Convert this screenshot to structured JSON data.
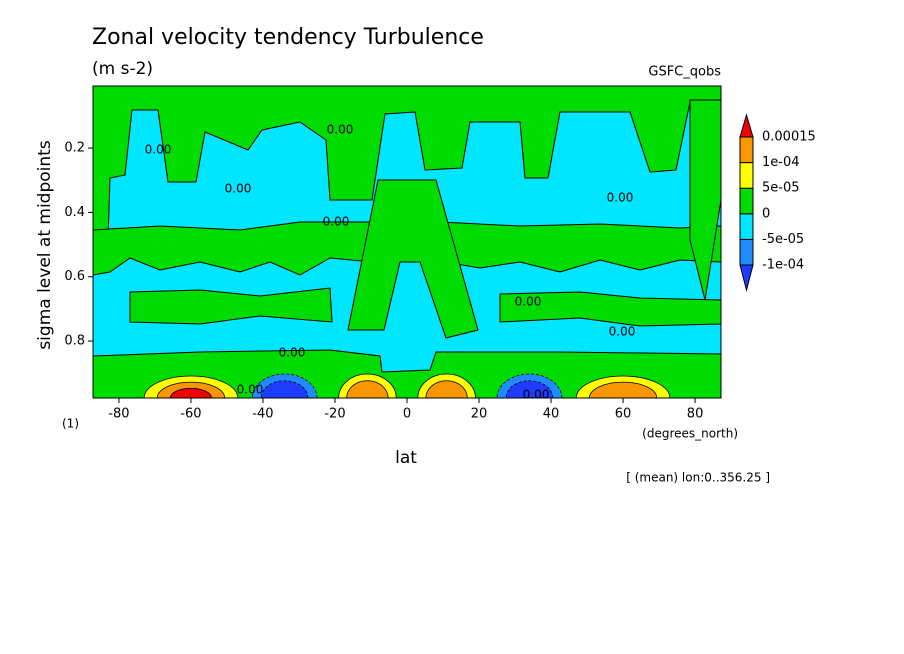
{
  "chart_data": {
    "type": "contour",
    "title": "Zonal velocity tendency Turbulence",
    "subtitle": "(m s-2)",
    "source": "GSFC_qobs",
    "xlabel": "lat",
    "xunits": "(degrees_north)",
    "ylabel": "sigma level at midpoints",
    "yunits": "(1)",
    "note": "[ (mean) lon:0..356.25 ]",
    "xlim": [
      -87.2,
      87.2
    ],
    "xticks": [
      -80,
      -60,
      -40,
      -20,
      0,
      20,
      40,
      60,
      80
    ],
    "ylim": [
      0.007,
      0.977
    ],
    "yticks": [
      0.2,
      0.4,
      0.6,
      0.8
    ],
    "y_reversed": true,
    "levels": [
      {
        "value": -0.0001,
        "label": "-1e-04"
      },
      {
        "value": -5e-05,
        "label": "-5e-05"
      },
      0,
      {
        "value": 5e-05,
        "label": "5e-05"
      },
      {
        "value": 0.0001,
        "label": "1e-04"
      },
      0.00015
    ],
    "colors": [
      "#1e3cff",
      "#1e8cff",
      "#00e6ff",
      "#00dc00",
      "#ffff00",
      "#fa9600",
      "#f00000"
    ],
    "contour_labels": [
      "0.00",
      "0.00",
      "0.00",
      "0.00",
      "0.00",
      "0.00",
      "0.00",
      "0.00",
      "0.00",
      "0.00"
    ]
  }
}
